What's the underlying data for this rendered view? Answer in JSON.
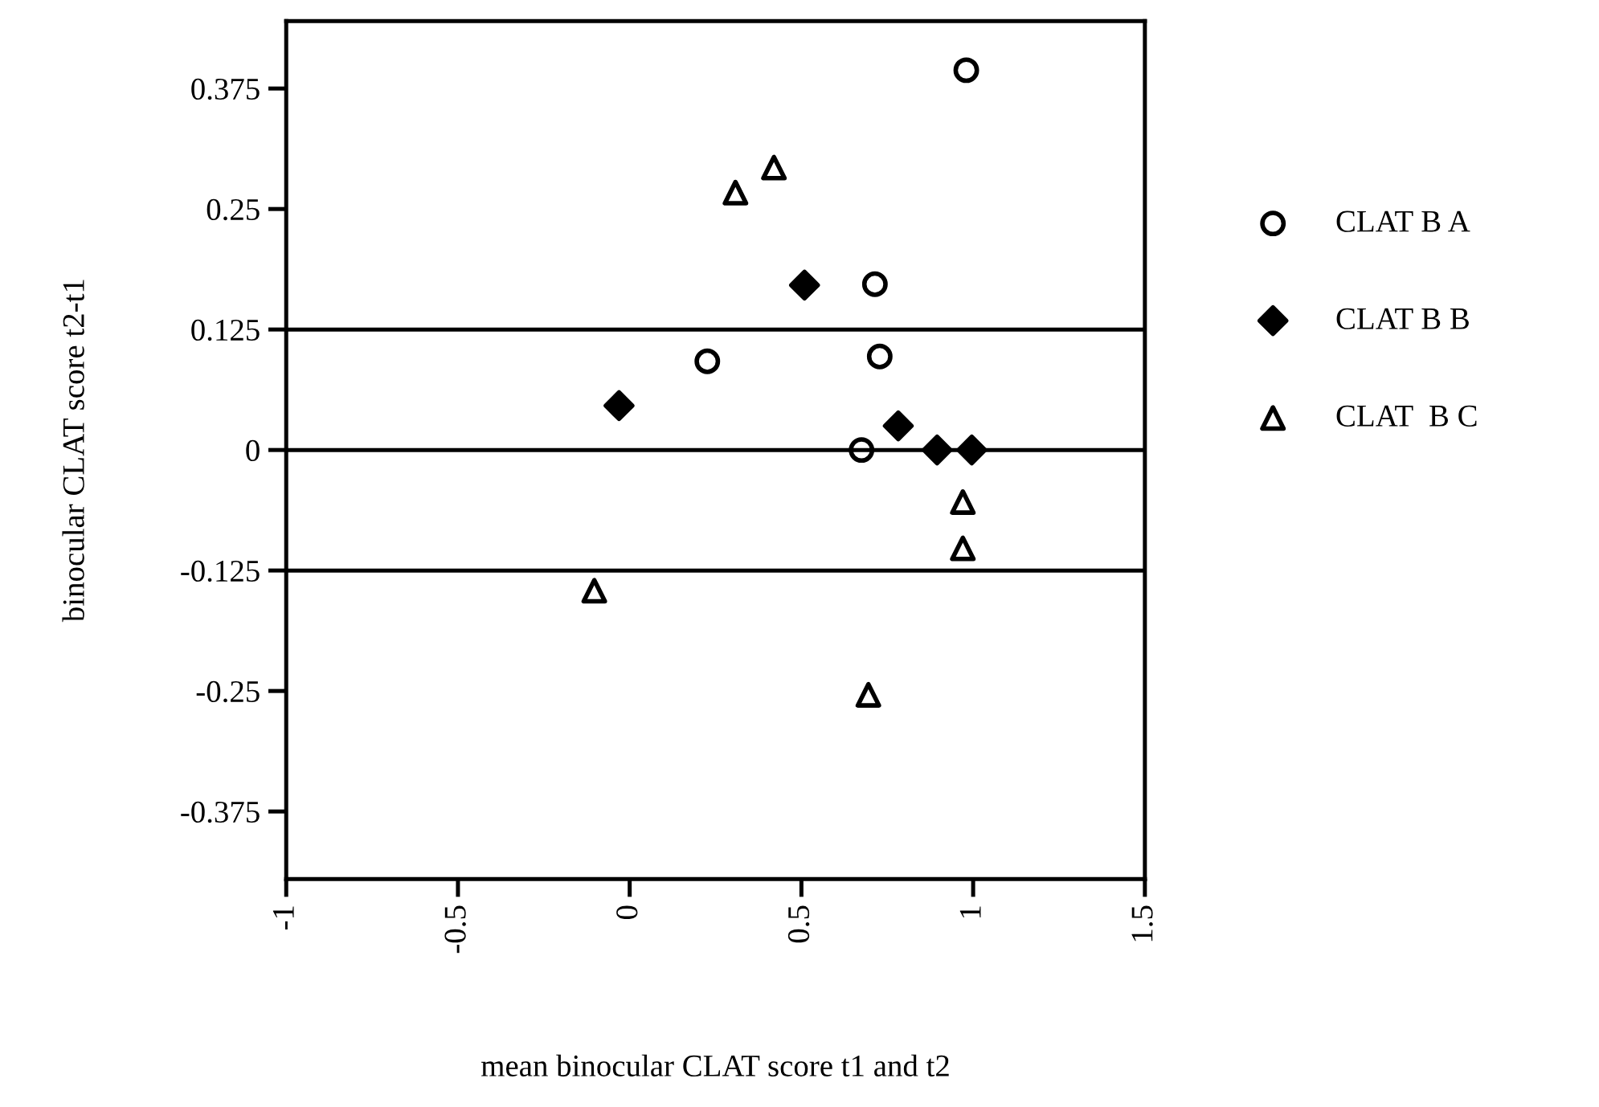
{
  "chart_data": {
    "type": "scatter",
    "xlabel": "mean binocular CLAT score t1 and t2",
    "ylabel": "binocular CLAT score t2-t1",
    "xlim": [
      -1,
      1.5
    ],
    "xticks": [
      -1,
      -0.5,
      0,
      0.5,
      1,
      1.5
    ],
    "ylim": [
      -0.445,
      0.445
    ],
    "yticks": [
      -0.375,
      -0.25,
      -0.125,
      0,
      0.125,
      0.25,
      0.375
    ],
    "grid": false,
    "legend": "right",
    "ref_lines": [
      {
        "axis": "y",
        "value": 0.125,
        "color": "#000000"
      },
      {
        "axis": "y",
        "value": 0,
        "color": "#000000"
      },
      {
        "axis": "y",
        "value": -0.125,
        "color": "#000000"
      }
    ],
    "series": [
      {
        "name": "CLAT B A",
        "color": "#000000",
        "marker": "circle",
        "x": [
          0.98,
          0.714,
          0.226,
          0.728,
          0.675
        ],
        "values": [
          0.394,
          0.172,
          0.092,
          0.097,
          0
        ]
      },
      {
        "name": "CLAT B B",
        "color": "#000000",
        "marker": "diamond",
        "x": [
          0.509,
          -0.031,
          0.782,
          0.895,
          0.996
        ],
        "values": [
          0.171,
          0.046,
          0.025,
          0,
          0
        ]
      },
      {
        "name": "CLAT  B C",
        "color": "#000000",
        "marker": "triangle",
        "x": [
          0.308,
          0.42,
          0.97,
          0.97,
          -0.103,
          0.695
        ],
        "values": [
          0.267,
          0.293,
          -0.054,
          -0.102,
          -0.146,
          -0.254
        ]
      }
    ]
  }
}
